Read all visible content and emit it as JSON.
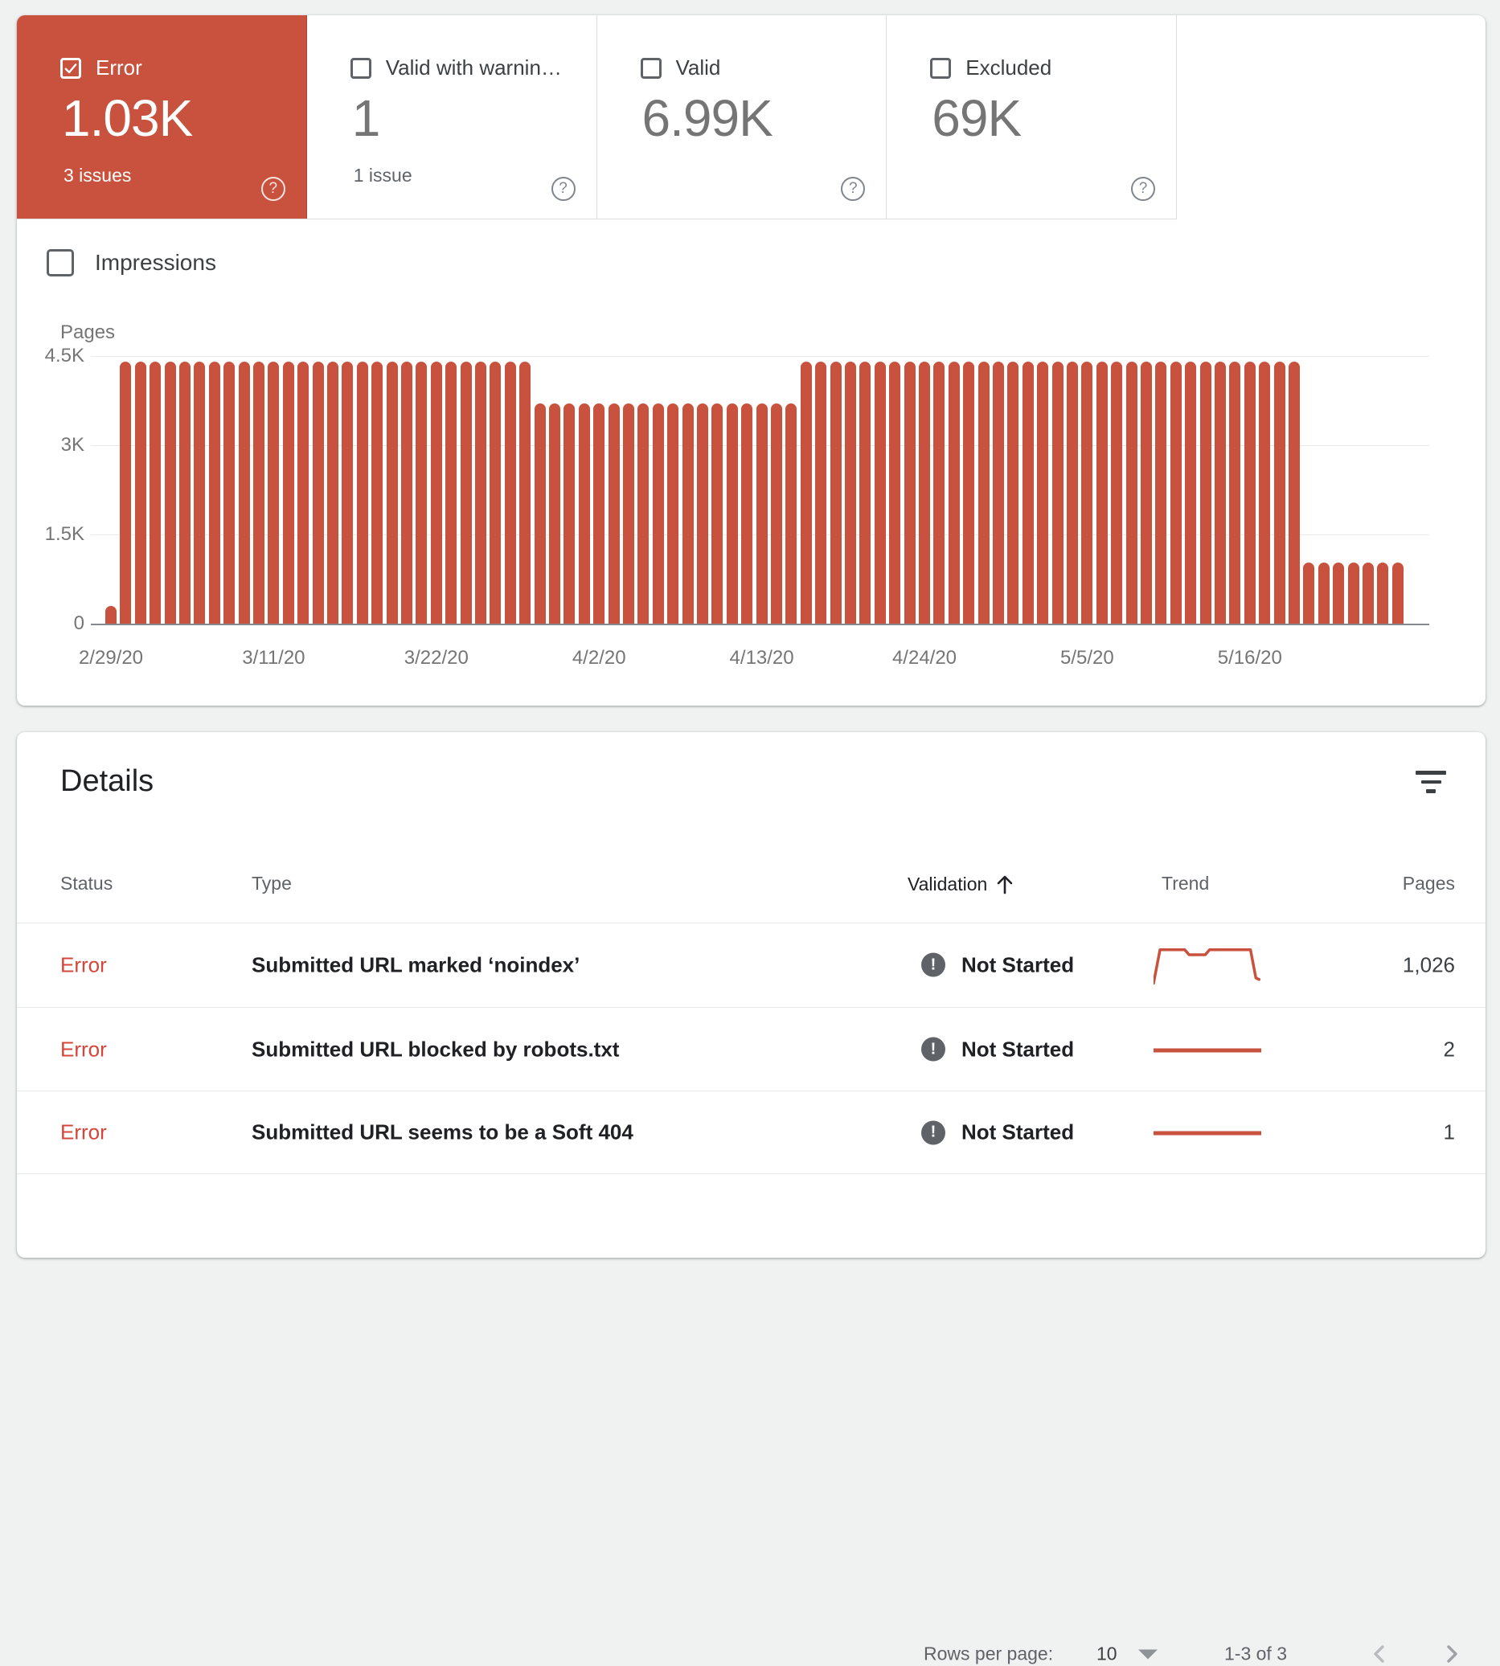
{
  "icons": {
    "help": "?",
    "validation_not_started": "!"
  },
  "colors": {
    "error_red": "#c8523e",
    "error_text_red": "#d6453a",
    "bar_red": "#c8523e",
    "ink": "#202124",
    "gray": "#5f6368"
  },
  "cards": [
    {
      "label": "Error",
      "value": "1.03K",
      "sub": "3 issues",
      "checked": true,
      "selected": true
    },
    {
      "label": "Valid with warnin…",
      "value": "1",
      "sub": "1 issue",
      "checked": false,
      "selected": false
    },
    {
      "label": "Valid",
      "value": "6.99K",
      "sub": "",
      "checked": false,
      "selected": false
    },
    {
      "label": "Excluded",
      "value": "69K",
      "sub": "",
      "checked": false,
      "selected": false
    }
  ],
  "impressions_label": "Impressions",
  "chart_data": {
    "type": "bar",
    "ylabel": "Pages",
    "ylim": [
      0,
      4500
    ],
    "bar_color": "#c8523e",
    "grid": true,
    "x_start": "2/29/20",
    "x_end": "5/26/20",
    "n_bars": 88,
    "segments": [
      {
        "value": 300,
        "count": 1,
        "range": "2/29/20"
      },
      {
        "value": 4400,
        "count": 28,
        "range": "3/1/20 - 3/28/20"
      },
      {
        "value": 3700,
        "count": 18,
        "range": "3/29/20 - 4/15/20"
      },
      {
        "value": 4400,
        "count": 34,
        "range": "4/16/20 - 5/19/20"
      },
      {
        "value": 1030,
        "count": 7,
        "range": "5/20/20 - 5/26/20"
      }
    ],
    "x_ticks": [
      {
        "index": 0,
        "label": "2/29/20"
      },
      {
        "index": 11,
        "label": "3/11/20"
      },
      {
        "index": 22,
        "label": "3/22/20"
      },
      {
        "index": 33,
        "label": "4/2/20"
      },
      {
        "index": 44,
        "label": "4/13/20"
      },
      {
        "index": 55,
        "label": "4/24/20"
      },
      {
        "index": 66,
        "label": "5/5/20"
      },
      {
        "index": 77,
        "label": "5/16/20"
      }
    ],
    "y_ticks": [
      {
        "value": 4500,
        "label": "4.5K"
      },
      {
        "value": 3000,
        "label": "3K"
      },
      {
        "value": 1500,
        "label": "1.5K"
      },
      {
        "value": 0,
        "label": "0"
      }
    ]
  },
  "details": {
    "title": "Details",
    "columns": {
      "status": "Status",
      "type": "Type",
      "validation": "Validation",
      "trend": "Trend",
      "pages": "Pages"
    },
    "sort": {
      "column": "Validation",
      "direction": "asc"
    },
    "rows": [
      {
        "status": "Error",
        "type": "Submitted URL marked ‘noindex’",
        "validation": "Not Started",
        "pages": "1,026",
        "trend_points": [
          [
            0,
            97
          ],
          [
            6,
            10
          ],
          [
            29,
            10
          ],
          [
            33,
            23
          ],
          [
            48,
            23
          ],
          [
            52,
            10
          ],
          [
            90,
            10
          ],
          [
            95,
            83
          ],
          [
            98,
            87
          ]
        ],
        "trend_stroke": 3.5
      },
      {
        "status": "Error",
        "type": "Submitted URL blocked by robots.txt",
        "validation": "Not Started",
        "pages": "2",
        "trend_points": [
          [
            0,
            52
          ],
          [
            100,
            52
          ]
        ],
        "trend_stroke": 5
      },
      {
        "status": "Error",
        "type": "Submitted URL seems to be a Soft 404",
        "validation": "Not Started",
        "pages": "1",
        "trend_points": [
          [
            0,
            52
          ],
          [
            100,
            52
          ]
        ],
        "trend_stroke": 5
      }
    ],
    "footer": {
      "rows_per_page_label": "Rows per page:",
      "rows_per_page_value": "10",
      "range_label": "1-3 of 3"
    }
  }
}
